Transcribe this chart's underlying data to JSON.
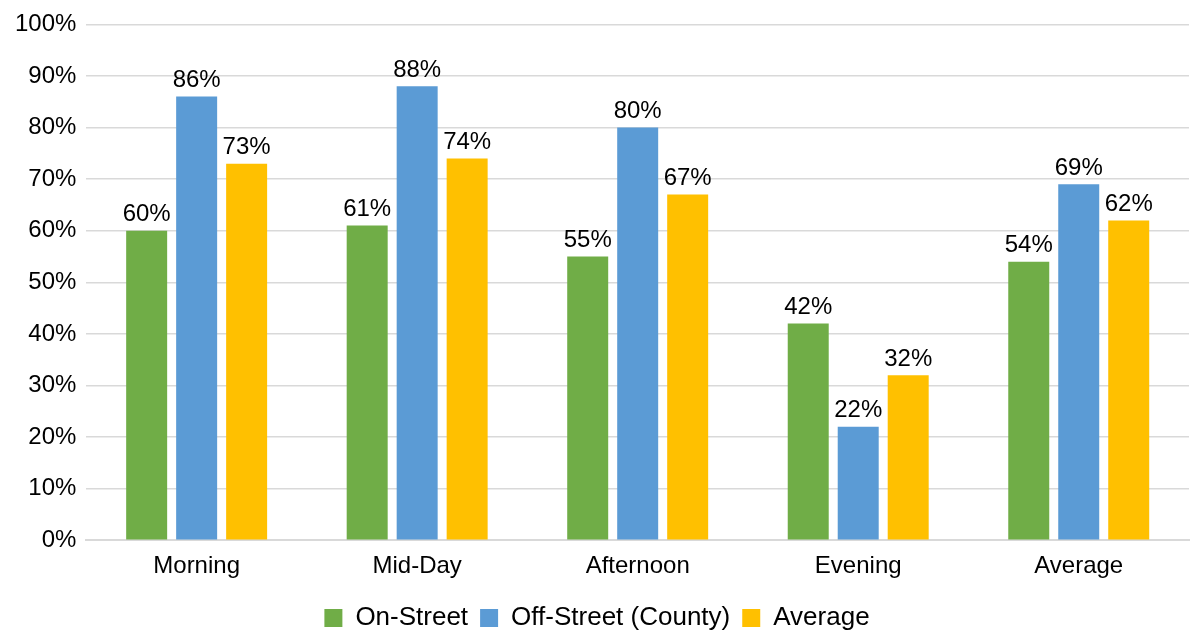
{
  "chart_data": {
    "type": "bar",
    "categories": [
      "Morning",
      "Mid-Day",
      "Afternoon",
      "Evening",
      "Average"
    ],
    "series": [
      {
        "name": "On-Street",
        "color": "#70ad47",
        "values": [
          60,
          61,
          55,
          42,
          54
        ],
        "value_labels": [
          "60%",
          "61%",
          "55%",
          "42%",
          "54%"
        ]
      },
      {
        "name": "Off-Street (County)",
        "color": "#5b9bd5",
        "values": [
          86,
          88,
          80,
          22,
          69
        ],
        "value_labels": [
          "86%",
          "88%",
          "80%",
          "22%",
          "69%"
        ]
      },
      {
        "name": "Average",
        "color": "#ffc000",
        "values": [
          73,
          74,
          67,
          32,
          62
        ],
        "value_labels": [
          "73%",
          "74%",
          "67%",
          "32%",
          "62%"
        ]
      }
    ],
    "ylim": [
      0,
      100
    ],
    "yticks": [
      {
        "value": 0,
        "label": "0%"
      },
      {
        "value": 10,
        "label": "10%"
      },
      {
        "value": 20,
        "label": "20%"
      },
      {
        "value": 30,
        "label": "30%"
      },
      {
        "value": 40,
        "label": "40%"
      },
      {
        "value": 50,
        "label": "50%"
      },
      {
        "value": 60,
        "label": "60%"
      },
      {
        "value": 70,
        "label": "70%"
      },
      {
        "value": 80,
        "label": "80%"
      },
      {
        "value": 90,
        "label": "90%"
      },
      {
        "value": 100,
        "label": "100%"
      }
    ],
    "grid": "y",
    "legend": "bottom"
  }
}
